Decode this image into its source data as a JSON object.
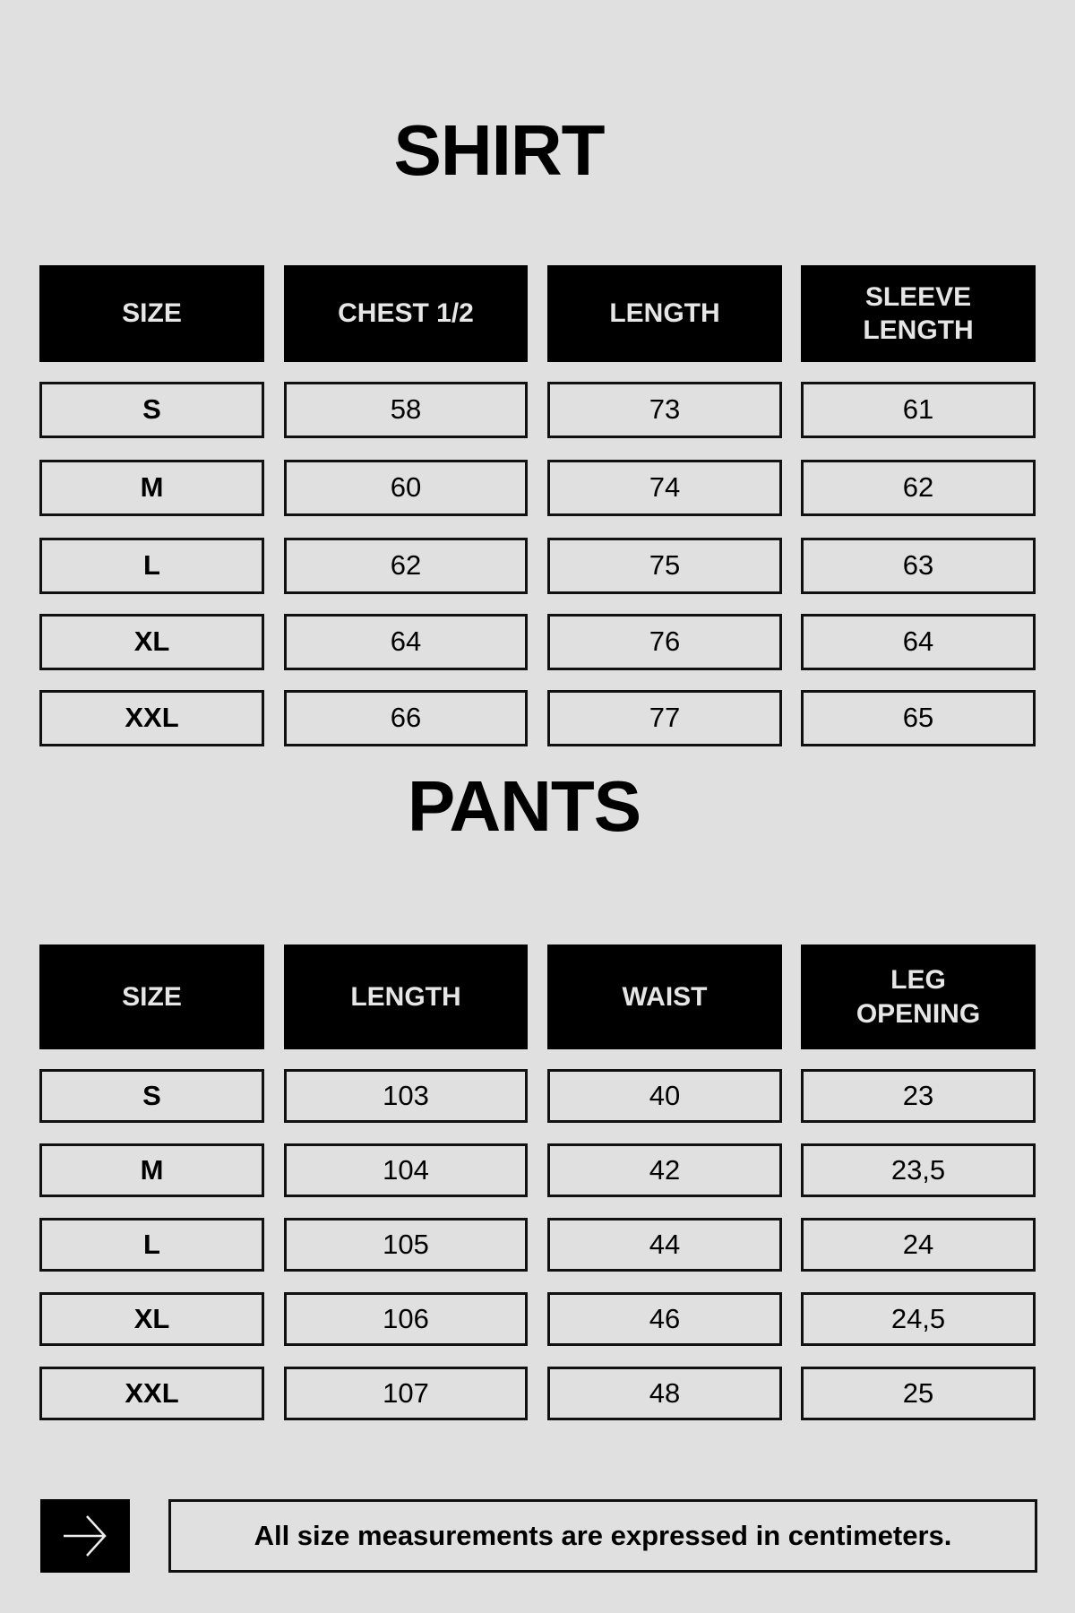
{
  "shirt": {
    "title": "SHIRT",
    "headers": [
      "SIZE",
      "CHEST 1/2",
      "LENGTH",
      "SLEEVE LENGTH"
    ],
    "rows": [
      [
        "S",
        "58",
        "73",
        "61"
      ],
      [
        "M",
        "60",
        "74",
        "62"
      ],
      [
        "L",
        "62",
        "75",
        "63"
      ],
      [
        "XL",
        "64",
        "76",
        "64"
      ],
      [
        "XXL",
        "66",
        "77",
        "65"
      ]
    ]
  },
  "pants": {
    "title": "PANTS",
    "headers": [
      "SIZE",
      "LENGTH",
      "WAIST",
      "LEG OPENING"
    ],
    "rows": [
      [
        "S",
        "103",
        "40",
        "23"
      ],
      [
        "M",
        "104",
        "42",
        "23,5"
      ],
      [
        "L",
        "105",
        "44",
        "24"
      ],
      [
        "XL",
        "106",
        "46",
        "24,5"
      ],
      [
        "XXL",
        "107",
        "48",
        "25"
      ]
    ]
  },
  "footer": {
    "icon": "arrow-right-icon",
    "note": "All size measurements are expressed in centimeters."
  },
  "colors": {
    "background": "#e0e0e0",
    "header": "#000000"
  }
}
